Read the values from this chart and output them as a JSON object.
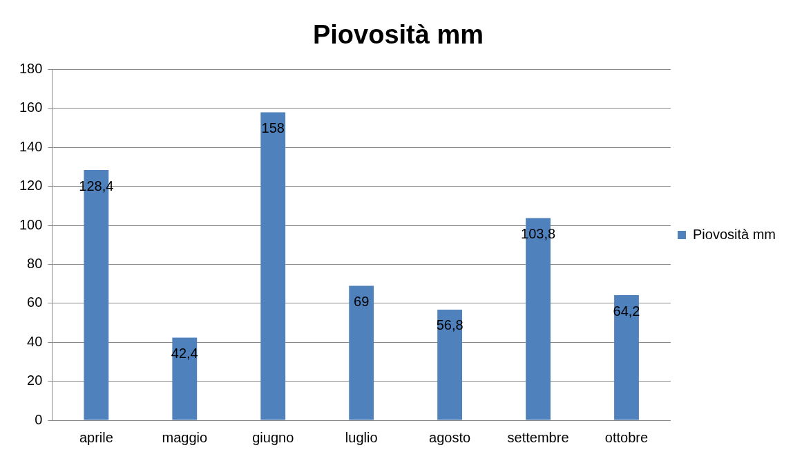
{
  "chart_data": {
    "type": "bar",
    "title": "Piovosità mm",
    "categories": [
      "aprile",
      "maggio",
      "giugno",
      "luglio",
      "agosto",
      "settembre",
      "ottobre"
    ],
    "series": [
      {
        "name": "Piovosità mm",
        "color": "#4f81bd",
        "values": [
          128.4,
          42.4,
          158,
          69,
          56.8,
          103.8,
          64.2
        ],
        "value_labels": [
          "128,4",
          "42,4",
          "158",
          "69",
          "56,8",
          "103,8",
          "64,2"
        ]
      }
    ],
    "ylim": [
      0,
      180
    ],
    "yticks": [
      0,
      20,
      40,
      60,
      80,
      100,
      120,
      140,
      160,
      180
    ],
    "grid": "y",
    "legend": "right"
  }
}
